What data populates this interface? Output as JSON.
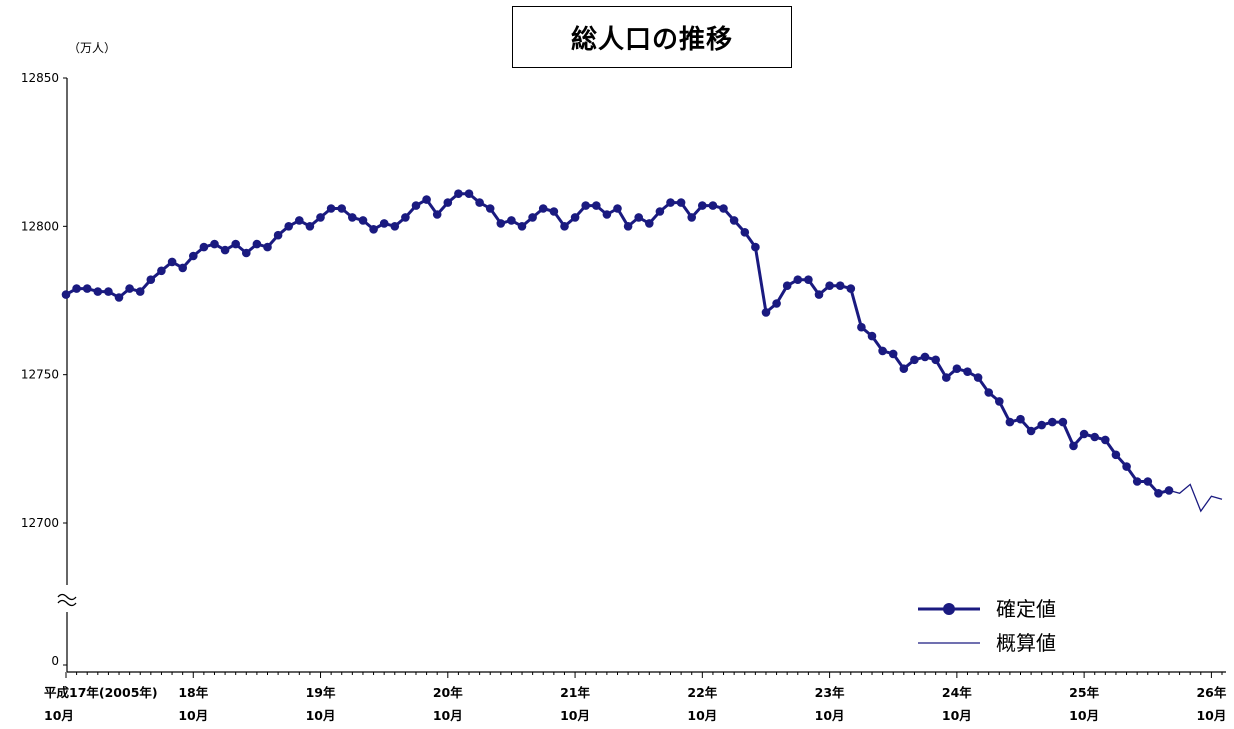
{
  "chart_data": {
    "type": "line",
    "title": "総人口の推移",
    "unit_label": "（万人）",
    "y_ticks": [
      "12850",
      "12800",
      "12750",
      "12700",
      "0"
    ],
    "ylim": [
      12700,
      12850
    ],
    "y_axis_broken": true,
    "x_tick_labels": [
      {
        "year": "平成17年(2005年)",
        "month": "10月"
      },
      {
        "year": "18年",
        "month": "10月"
      },
      {
        "year": "19年",
        "month": "10月"
      },
      {
        "year": "20年",
        "month": "10月"
      },
      {
        "year": "21年",
        "month": "10月"
      },
      {
        "year": "22年",
        "month": "10月"
      },
      {
        "year": "23年",
        "month": "10月"
      },
      {
        "year": "24年",
        "month": "10月"
      },
      {
        "year": "25年",
        "month": "10月"
      },
      {
        "year": "26年",
        "month": "10月"
      }
    ],
    "months_per_tick": 12,
    "legend_position": "bottom-right",
    "series": [
      {
        "name": "確定値",
        "color": "#1a1a80",
        "marker": "circle",
        "values": [
          12777,
          12779,
          12779,
          12778,
          12778,
          12776,
          12779,
          12778,
          12782,
          12785,
          12788,
          12786,
          12790,
          12793,
          12794,
          12792,
          12794,
          12791,
          12794,
          12793,
          12797,
          12800,
          12802,
          12800,
          12803,
          12806,
          12806,
          12803,
          12802,
          12799,
          12801,
          12800,
          12803,
          12807,
          12809,
          12804,
          12808,
          12811,
          12811,
          12808,
          12806,
          12801,
          12802,
          12800,
          12803,
          12806,
          12805,
          12800,
          12803,
          12807,
          12807,
          12804,
          12806,
          12800,
          12803,
          12801,
          12805,
          12808,
          12808,
          12803,
          12807,
          12807,
          12806,
          12802,
          12798,
          12793,
          12771,
          12774,
          12780,
          12782,
          12782,
          12777,
          12780,
          12780,
          12779,
          12766,
          12763,
          12758,
          12757,
          12752,
          12755,
          12756,
          12755,
          12749,
          12752,
          12751,
          12749,
          12744,
          12741,
          12734,
          12735,
          12731,
          12733,
          12734,
          12734,
          12726,
          12730,
          12729,
          12728,
          12723,
          12719,
          12714,
          12714,
          12710,
          12711
        ]
      },
      {
        "name": "概算値",
        "color": "#1a1a80",
        "marker": "none",
        "start_index": 104,
        "values": [
          12711,
          12710,
          12713,
          12704,
          12709,
          12708
        ]
      }
    ]
  }
}
